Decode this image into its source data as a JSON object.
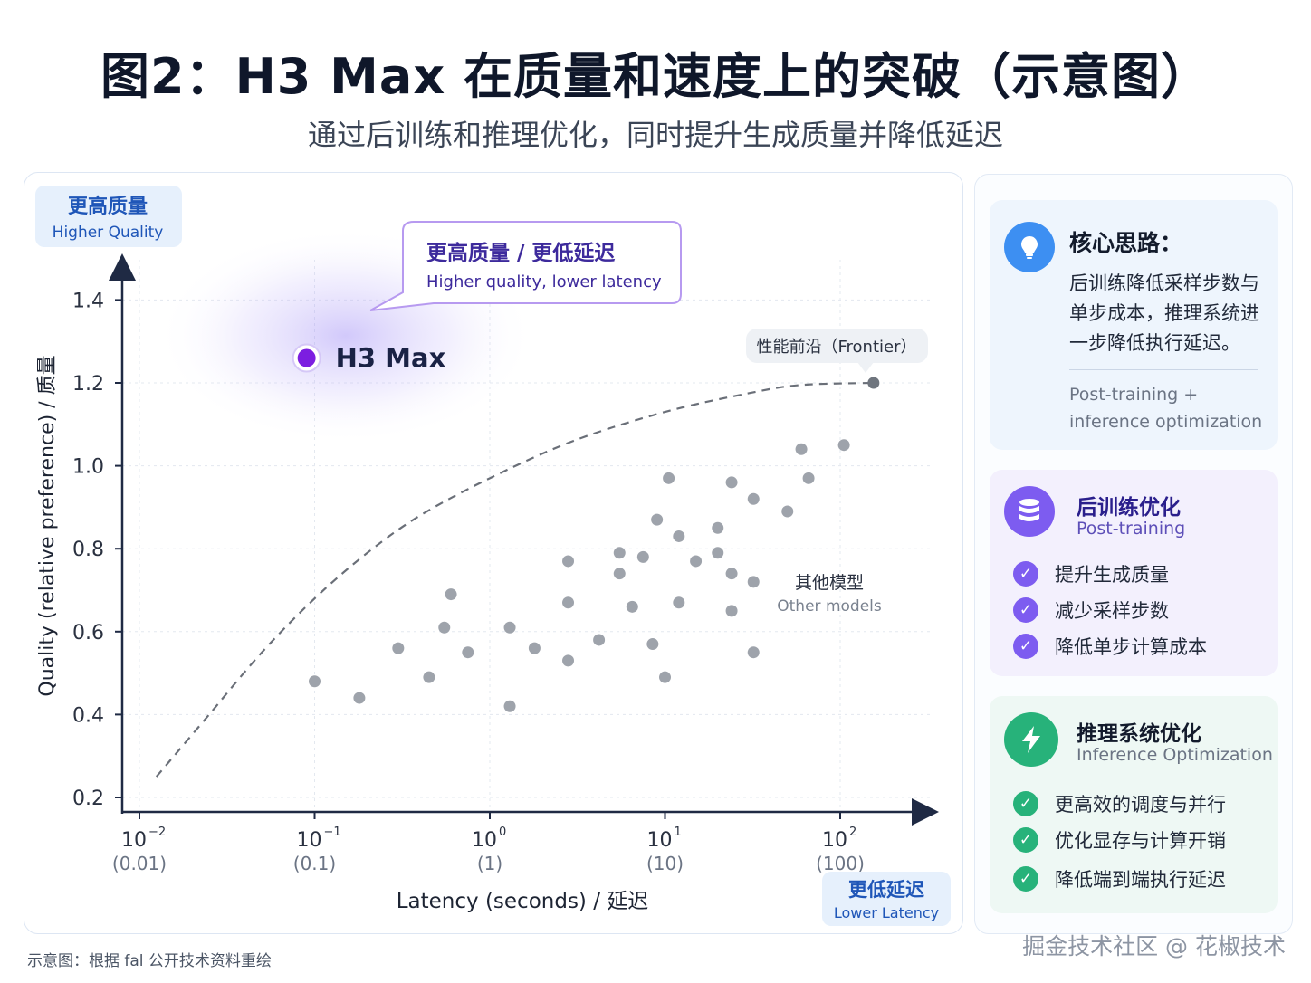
{
  "header": {
    "title": "图2：H3 Max 在质量和速度上的突破（示意图）",
    "subtitle": "通过后训练和推理优化，同时提升生成质量并降低延迟"
  },
  "chart_data": {
    "type": "scatter",
    "ylabel": "Quality (relative preference) / 质量",
    "xlabel": "Latency (seconds) / 延迟",
    "x_scale": "log",
    "xlim": [
      0.01,
      1000
    ],
    "ylim": [
      0.2,
      1.45
    ],
    "x_ticks": [
      {
        "value": 0.01,
        "base": "10",
        "exp": "−2",
        "label": "(0.01)"
      },
      {
        "value": 0.1,
        "base": "10",
        "exp": "−1",
        "label": "(0.1)"
      },
      {
        "value": 1,
        "base": "10",
        "exp": "0",
        "label": "(1)"
      },
      {
        "value": 10,
        "base": "10",
        "exp": "1",
        "label": "(10)"
      },
      {
        "value": 100,
        "base": "10",
        "exp": "2",
        "label": "(100)"
      }
    ],
    "y_ticks": [
      "0.2",
      "0.4",
      "0.6",
      "0.8",
      "1.0",
      "1.2",
      "1.4"
    ],
    "y_tick_values": [
      0.2,
      0.4,
      0.6,
      0.8,
      1.0,
      1.2,
      1.4
    ],
    "corner_labels": {
      "top_zh": "更高质量",
      "top_en": "Higher Quality",
      "bottom_zh": "更低延迟",
      "bottom_en": "Lower Latency"
    },
    "highlight": {
      "name": "H3 Max",
      "x": 0.09,
      "y": 1.26,
      "color": "#7c1ee0",
      "callout_zh": "更高质量 / 更低延迟",
      "callout_en": "Higher quality, lower latency"
    },
    "frontier": {
      "label": "性能前沿（Frontier）",
      "points": [
        [
          0.0125,
          0.25
        ],
        [
          0.025,
          0.4
        ],
        [
          0.05,
          0.55
        ],
        [
          0.1,
          0.68
        ],
        [
          0.2,
          0.79
        ],
        [
          0.4,
          0.88
        ],
        [
          1,
          0.97
        ],
        [
          3,
          1.06
        ],
        [
          10,
          1.13
        ],
        [
          30,
          1.175
        ],
        [
          60,
          1.195
        ],
        [
          155,
          1.2
        ]
      ]
    },
    "others": {
      "label_zh": "其他模型",
      "label_en": "Other models",
      "color": "#9ea3ab",
      "points": [
        [
          0.1,
          0.48
        ],
        [
          0.18,
          0.44
        ],
        [
          0.3,
          0.56
        ],
        [
          0.45,
          0.49
        ],
        [
          0.55,
          0.61
        ],
        [
          0.6,
          0.69
        ],
        [
          0.75,
          0.55
        ],
        [
          1.3,
          0.61
        ],
        [
          1.3,
          0.42
        ],
        [
          1.8,
          0.56
        ],
        [
          2.8,
          0.77
        ],
        [
          2.8,
          0.67
        ],
        [
          2.8,
          0.53
        ],
        [
          4.2,
          0.58
        ],
        [
          5.5,
          0.79
        ],
        [
          5.5,
          0.74
        ],
        [
          6.5,
          0.66
        ],
        [
          7.5,
          0.78
        ],
        [
          8.5,
          0.57
        ],
        [
          9,
          0.87
        ],
        [
          10.5,
          0.97
        ],
        [
          10,
          0.49
        ],
        [
          12,
          0.83
        ],
        [
          12,
          0.67
        ],
        [
          15,
          0.77
        ],
        [
          20,
          0.85
        ],
        [
          20,
          0.79
        ],
        [
          24,
          0.96
        ],
        [
          24,
          0.74
        ],
        [
          24,
          0.65
        ],
        [
          32,
          0.92
        ],
        [
          32,
          0.72
        ],
        [
          32,
          0.55
        ],
        [
          50,
          0.89
        ],
        [
          60,
          1.04
        ],
        [
          66,
          0.97
        ],
        [
          105,
          1.05
        ]
      ]
    }
  },
  "side": {
    "core": {
      "icon": "lightbulb-icon",
      "title": "核心思路：",
      "body": [
        "后训练降低采样步数与",
        "单步成本，推理系统进",
        "一步降低执行延迟。"
      ],
      "en": [
        "Post-training +",
        "inference optimization"
      ]
    },
    "post_training": {
      "icon": "database-icon",
      "title": "后训练优化",
      "en": "Post-training",
      "items": [
        "提升生成质量",
        "减少采样步数",
        "降低单步计算成本"
      ]
    },
    "inference": {
      "icon": "lightning-icon",
      "title": "推理系统优化",
      "en": "Inference Optimization",
      "items": [
        "更高效的调度与并行",
        "优化显存与计算开销",
        "降低端到端执行延迟"
      ]
    }
  },
  "colors": {
    "accent_blue": "#1f56b8",
    "purple": "#7d5cf0",
    "green": "#27b27a",
    "blue_icon": "#3d8ff2",
    "axis": "#1f2a44"
  },
  "footer": {
    "note": "示意图：根据 fal 公开技术资料重绘",
    "watermark": "掘金技术社区 @ 花椒技术"
  }
}
